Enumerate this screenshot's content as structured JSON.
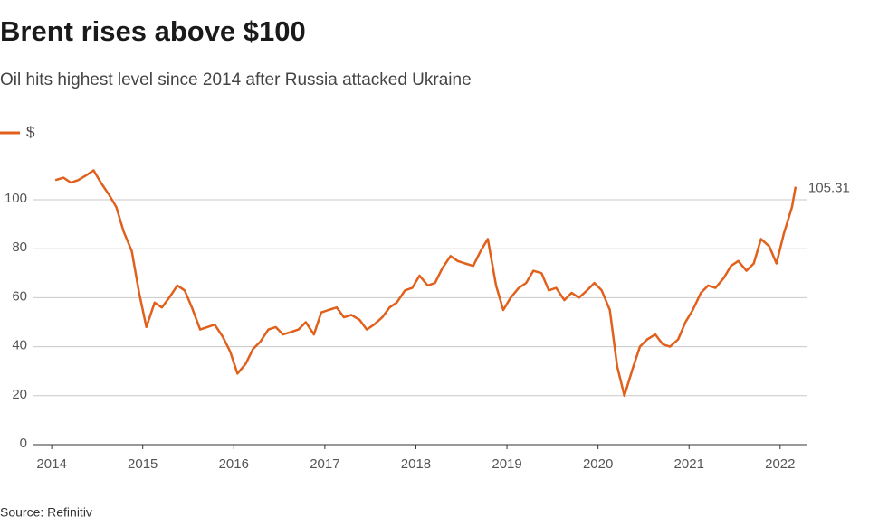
{
  "chart_data": {
    "type": "line",
    "title": "Brent rises above $100",
    "subtitle": "Oil hits highest level since 2014 after Russia attacked Ukraine",
    "source": "Source: Refinitiv",
    "annotation": "105.31",
    "xlim": [
      2013.8,
      2022.3
    ],
    "xticks": [
      2014,
      2015,
      2016,
      2017,
      2018,
      2019,
      2020,
      2021,
      2022
    ],
    "ylim": [
      0,
      120
    ],
    "yticks": [
      0,
      20,
      40,
      60,
      80,
      100
    ],
    "grid": true,
    "legend": "top-left",
    "x": [
      2014.04,
      2014.13,
      2014.21,
      2014.29,
      2014.38,
      2014.46,
      2014.54,
      2014.63,
      2014.71,
      2014.79,
      2014.88,
      2014.96,
      2015.04,
      2015.13,
      2015.21,
      2015.29,
      2015.38,
      2015.46,
      2015.54,
      2015.63,
      2015.71,
      2015.79,
      2015.88,
      2015.96,
      2016.04,
      2016.13,
      2016.21,
      2016.29,
      2016.38,
      2016.46,
      2016.54,
      2016.63,
      2016.71,
      2016.79,
      2016.88,
      2016.96,
      2017.04,
      2017.13,
      2017.21,
      2017.29,
      2017.38,
      2017.46,
      2017.54,
      2017.63,
      2017.71,
      2017.79,
      2017.88,
      2017.96,
      2018.04,
      2018.13,
      2018.21,
      2018.29,
      2018.38,
      2018.46,
      2018.54,
      2018.63,
      2018.71,
      2018.79,
      2018.88,
      2018.96,
      2019.04,
      2019.13,
      2019.21,
      2019.29,
      2019.38,
      2019.46,
      2019.54,
      2019.63,
      2019.71,
      2019.79,
      2019.88,
      2019.96,
      2020.04,
      2020.13,
      2020.21,
      2020.29,
      2020.38,
      2020.46,
      2020.54,
      2020.63,
      2020.71,
      2020.79,
      2020.88,
      2020.96,
      2021.04,
      2021.13,
      2021.21,
      2021.29,
      2021.38,
      2021.46,
      2021.54,
      2021.63,
      2021.71,
      2021.79,
      2021.88,
      2021.96,
      2022.04,
      2022.13,
      2022.17
    ],
    "series": [
      {
        "name": "$",
        "color": "#e0601c",
        "values": [
          108,
          109,
          107,
          108,
          110,
          112,
          107,
          102,
          97,
          87,
          79,
          62,
          48,
          58,
          56,
          60,
          65,
          63,
          56,
          47,
          48,
          49,
          44,
          38,
          29,
          33,
          39,
          42,
          47,
          48,
          45,
          46,
          47,
          50,
          45,
          54,
          55,
          56,
          52,
          53,
          51,
          47,
          49,
          52,
          56,
          58,
          63,
          64,
          69,
          65,
          66,
          72,
          77,
          75,
          74,
          73,
          79,
          84,
          65,
          55,
          60,
          64,
          66,
          71,
          70,
          63,
          64,
          59,
          62,
          60,
          63,
          66,
          63,
          55,
          32,
          20,
          31,
          40,
          43,
          45,
          41,
          40,
          43,
          50,
          55,
          62,
          65,
          64,
          68,
          73,
          75,
          71,
          74,
          84,
          81,
          74,
          86,
          97,
          105.31
        ]
      }
    ]
  }
}
